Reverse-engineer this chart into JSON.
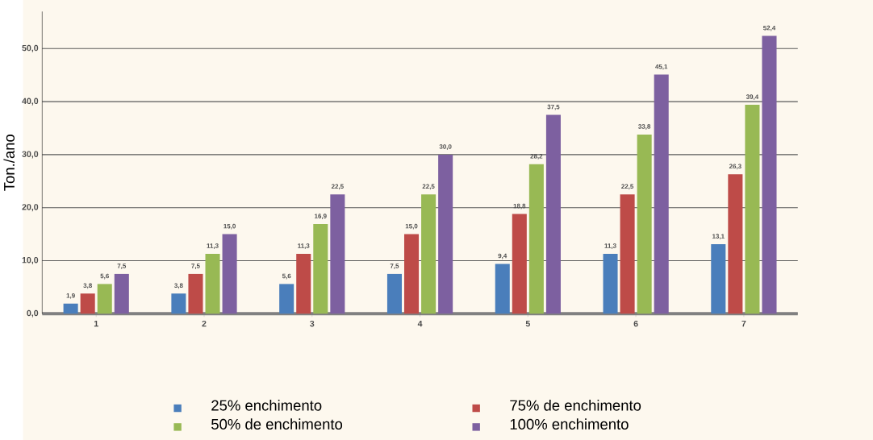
{
  "chart_data": {
    "type": "bar",
    "ylabel": "Ton./ano",
    "categories": [
      "1",
      "2",
      "3",
      "4",
      "5",
      "6",
      "7"
    ],
    "series": [
      {
        "name": "25% enchimento",
        "color": "#4a7ebb",
        "values": [
          1.9,
          3.8,
          5.6,
          7.5,
          9.4,
          11.3,
          13.1
        ],
        "value_labels": [
          "1,9",
          "3,8",
          "5,6",
          "7,5",
          "9,4",
          "11,3",
          "13,1"
        ]
      },
      {
        "name": "75% de enchimento",
        "color": "#be4b48",
        "values": [
          3.8,
          7.5,
          11.3,
          15.0,
          18.8,
          22.5,
          26.3
        ],
        "value_labels": [
          "3,8",
          "7,5",
          "11,3",
          "15,0",
          "18,8",
          "22,5",
          "26,3"
        ]
      },
      {
        "name": "50% de enchimento",
        "color": "#98b954",
        "values": [
          5.6,
          11.3,
          16.9,
          22.5,
          28.2,
          33.8,
          39.4
        ],
        "value_labels": [
          "5,6",
          "11,3",
          "16,9",
          "22,5",
          "28,2",
          "33,8",
          "39,4"
        ]
      },
      {
        "name": "100% enchimento",
        "color": "#7d60a0",
        "values": [
          7.5,
          15.0,
          22.5,
          30.0,
          37.5,
          45.1,
          52.4
        ],
        "value_labels": [
          "7,5",
          "15,0",
          "22,5",
          "30,0",
          "37,5",
          "45,1",
          "52,4"
        ]
      }
    ],
    "ylim": [
      0,
      57
    ],
    "yticks": [
      {
        "value": 0,
        "label": "0,0"
      },
      {
        "value": 10,
        "label": "10,0"
      },
      {
        "value": 20,
        "label": "20,0"
      },
      {
        "value": 30,
        "label": "30,0"
      },
      {
        "value": 40,
        "label": "40,0"
      },
      {
        "value": 50,
        "label": "50,0"
      }
    ],
    "grid": "y",
    "legend": "bottom"
  }
}
